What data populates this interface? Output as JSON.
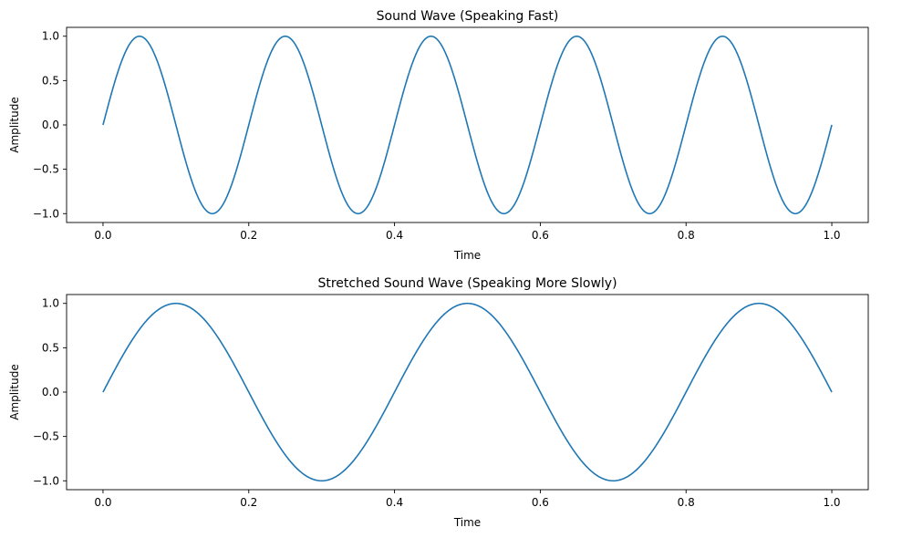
{
  "chart_data": [
    {
      "type": "line",
      "title": "Sound Wave (Speaking Fast)",
      "xlabel": "Time",
      "ylabel": "Amplitude",
      "xlim": [
        -0.05,
        1.05
      ],
      "ylim": [
        -1.1,
        1.1
      ],
      "xticks": [
        "0.0",
        "0.2",
        "0.4",
        "0.6",
        "0.8",
        "1.0"
      ],
      "yticks": [
        "-1.0",
        "-0.5",
        "0.0",
        "0.5",
        "1.0"
      ],
      "grid": false,
      "line_color": "#1f77b4",
      "function": "sin(2*pi*f*t)",
      "frequency": 5,
      "t_range": [
        0,
        1
      ],
      "x": [
        0.0,
        0.05,
        0.1,
        0.15,
        0.2,
        0.25,
        0.3,
        0.35,
        0.4,
        0.45,
        0.5,
        0.55,
        0.6,
        0.65,
        0.7,
        0.75,
        0.8,
        0.85,
        0.9,
        0.95,
        1.0
      ],
      "y": [
        0,
        1,
        0,
        -1,
        0,
        1,
        0,
        -1,
        0,
        1,
        0,
        -1,
        0,
        1,
        0,
        -1,
        0,
        1,
        0,
        -1,
        0
      ]
    },
    {
      "type": "line",
      "title": "Stretched Sound Wave (Speaking More Slowly)",
      "xlabel": "Time",
      "ylabel": "Amplitude",
      "xlim": [
        -0.05,
        1.05
      ],
      "ylim": [
        -1.1,
        1.1
      ],
      "xticks": [
        "0.0",
        "0.2",
        "0.4",
        "0.6",
        "0.8",
        "1.0"
      ],
      "yticks": [
        "-1.0",
        "-0.5",
        "0.0",
        "0.5",
        "1.0"
      ],
      "grid": false,
      "line_color": "#1f77b4",
      "function": "sin(2*pi*f*t)",
      "frequency": 2.5,
      "t_range": [
        0,
        1
      ],
      "x": [
        0.0,
        0.1,
        0.2,
        0.3,
        0.4,
        0.5,
        0.6,
        0.7,
        0.8,
        0.9,
        1.0
      ],
      "y": [
        0,
        1,
        0,
        -1,
        0,
        1,
        0,
        -1,
        0,
        1,
        0
      ]
    }
  ]
}
